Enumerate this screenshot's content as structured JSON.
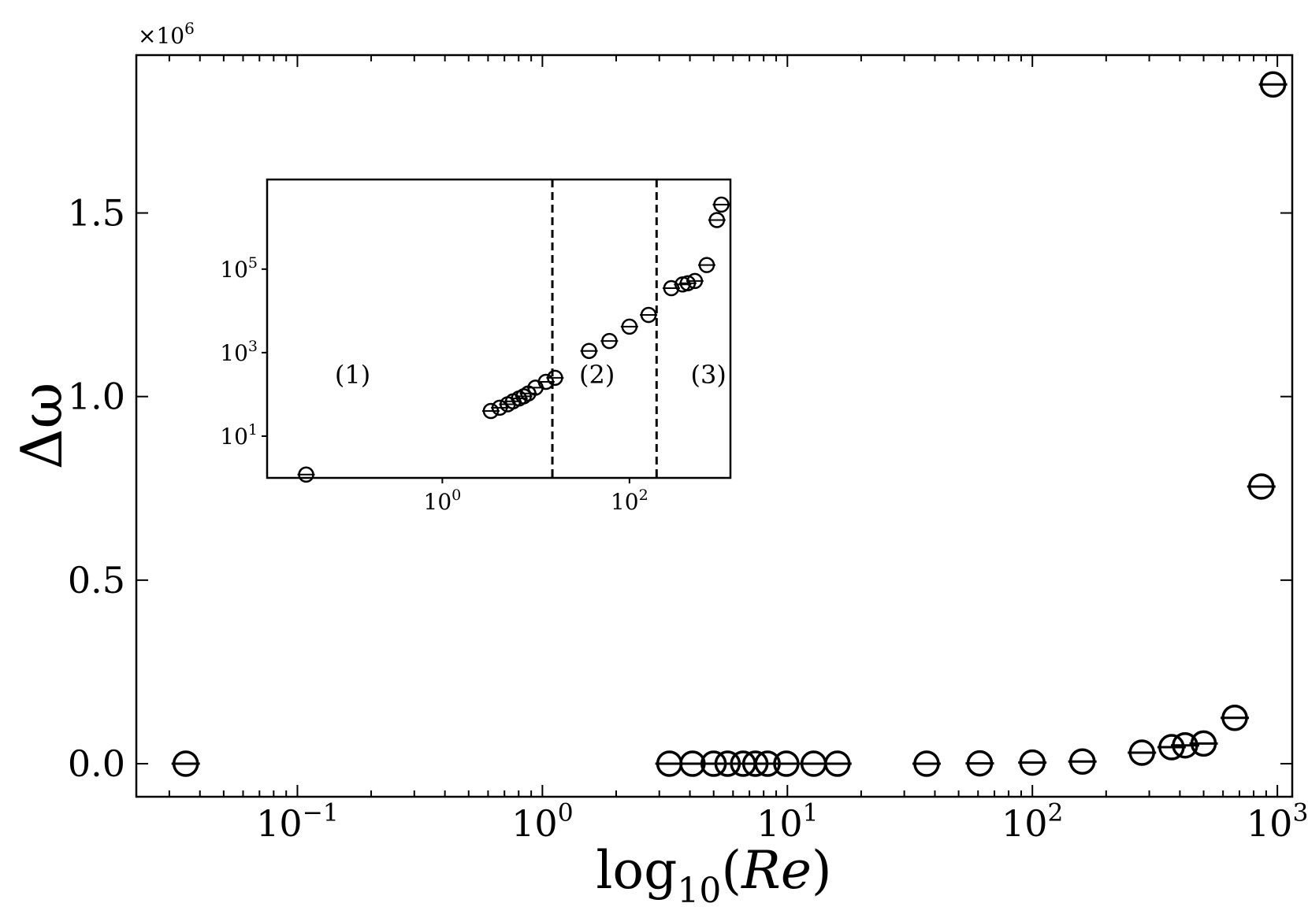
{
  "chart_data": [
    {
      "type": "scatter",
      "title": "",
      "xlabel_main": "log",
      "xlabel_sub": "10",
      "xlabel_arg": "Re",
      "ylabel": "Δω",
      "x_scale": "log",
      "y_scale": "linear",
      "y_multiplier": "×10",
      "y_multiplier_exp": "6",
      "xlim": [
        0.022,
        1150
      ],
      "ylim": [
        -0.09,
        1.93
      ],
      "x_ticks": [
        {
          "value": 0.1,
          "base": "10",
          "exp": "−1"
        },
        {
          "value": 1,
          "base": "10",
          "exp": "0"
        },
        {
          "value": 10,
          "base": "10",
          "exp": "1"
        },
        {
          "value": 100,
          "base": "10",
          "exp": "2"
        },
        {
          "value": 1000,
          "base": "10",
          "exp": "3"
        }
      ],
      "y_ticks": [
        {
          "value": 0.0,
          "label": "0.0"
        },
        {
          "value": 0.5,
          "label": "0.5"
        },
        {
          "value": 1.0,
          "label": "1.0"
        },
        {
          "value": 1.5,
          "label": "1.5"
        }
      ],
      "marker": "open-circle with horizontal error bar",
      "x": [
        0.035,
        3.3,
        4.1,
        5.0,
        5.7,
        6.6,
        7.4,
        8.3,
        9.9,
        12.8,
        16.0,
        37,
        61,
        100,
        160,
        280,
        370,
        420,
        500,
        670,
        860,
        960
      ],
      "y": [
        0.0,
        0.0,
        0.0,
        0.0,
        0.0,
        0.0,
        0.0,
        0.0,
        0.0,
        0.0,
        0.0,
        0.0,
        0.001,
        0.003,
        0.006,
        0.03,
        0.045,
        0.05,
        0.055,
        0.125,
        0.755,
        1.85
      ]
    },
    {
      "type": "scatter",
      "title": "",
      "x_scale": "log",
      "y_scale": "log",
      "xlim": [
        0.0134,
        1200
      ],
      "ylim": [
        1.0,
        14000000
      ],
      "x_ticks": [
        {
          "value": 1,
          "base": "10",
          "exp": "0"
        },
        {
          "value": 100,
          "base": "10",
          "exp": "2"
        }
      ],
      "y_ticks": [
        {
          "value": 10,
          "base": "10",
          "exp": "1"
        },
        {
          "value": 1000,
          "base": "10",
          "exp": "3"
        },
        {
          "value": 100000,
          "base": "10",
          "exp": "5"
        }
      ],
      "dashed_vlines_x": [
        15,
        195
      ],
      "region_labels": [
        {
          "text": "(1)",
          "x": 0.11,
          "y": 280
        },
        {
          "text": "(2)",
          "x": 45,
          "y": 280
        },
        {
          "text": "(3)",
          "x": 700,
          "y": 280
        }
      ],
      "x": [
        0.035,
        3.3,
        4.1,
        5.0,
        5.7,
        6.6,
        7.4,
        8.3,
        9.9,
        12.8,
        16.0,
        37,
        61,
        100,
        160,
        280,
        370,
        420,
        500,
        670,
        860,
        960
      ],
      "y": [
        1.2,
        40,
        48,
        58,
        68,
        80,
        90,
        105,
        145,
        200,
        250,
        1100,
        1900,
        4200,
        8000,
        35000,
        43000,
        46000,
        52000,
        125000,
        1500000,
        3500000
      ]
    }
  ]
}
